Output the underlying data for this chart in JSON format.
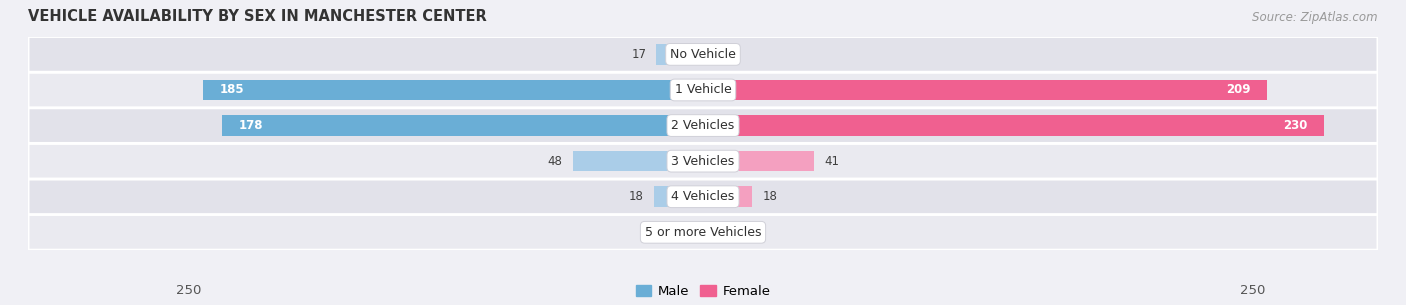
{
  "title": "VEHICLE AVAILABILITY BY SEX IN MANCHESTER CENTER",
  "source": "Source: ZipAtlas.com",
  "categories": [
    "No Vehicle",
    "1 Vehicle",
    "2 Vehicles",
    "3 Vehicles",
    "4 Vehicles",
    "5 or more Vehicles"
  ],
  "male_values": [
    17,
    185,
    178,
    48,
    18,
    0
  ],
  "female_values": [
    0,
    209,
    230,
    41,
    18,
    0
  ],
  "male_color_large": "#6aaed6",
  "male_color_small": "#aacde8",
  "female_color_large": "#f06090",
  "female_color_small": "#f4a0c0",
  "max_val": 250,
  "legend_male": "Male",
  "legend_female": "Female",
  "title_fontsize": 10.5,
  "source_fontsize": 8.5,
  "tick_fontsize": 9.5,
  "label_fontsize": 9,
  "value_fontsize": 8.5,
  "bar_height": 0.58,
  "row_bg_color_odd": "#eaeaf0",
  "row_bg_color_even": "#e2e2ea",
  "bg_color": "#f0f0f5",
  "label_color": "#404040"
}
